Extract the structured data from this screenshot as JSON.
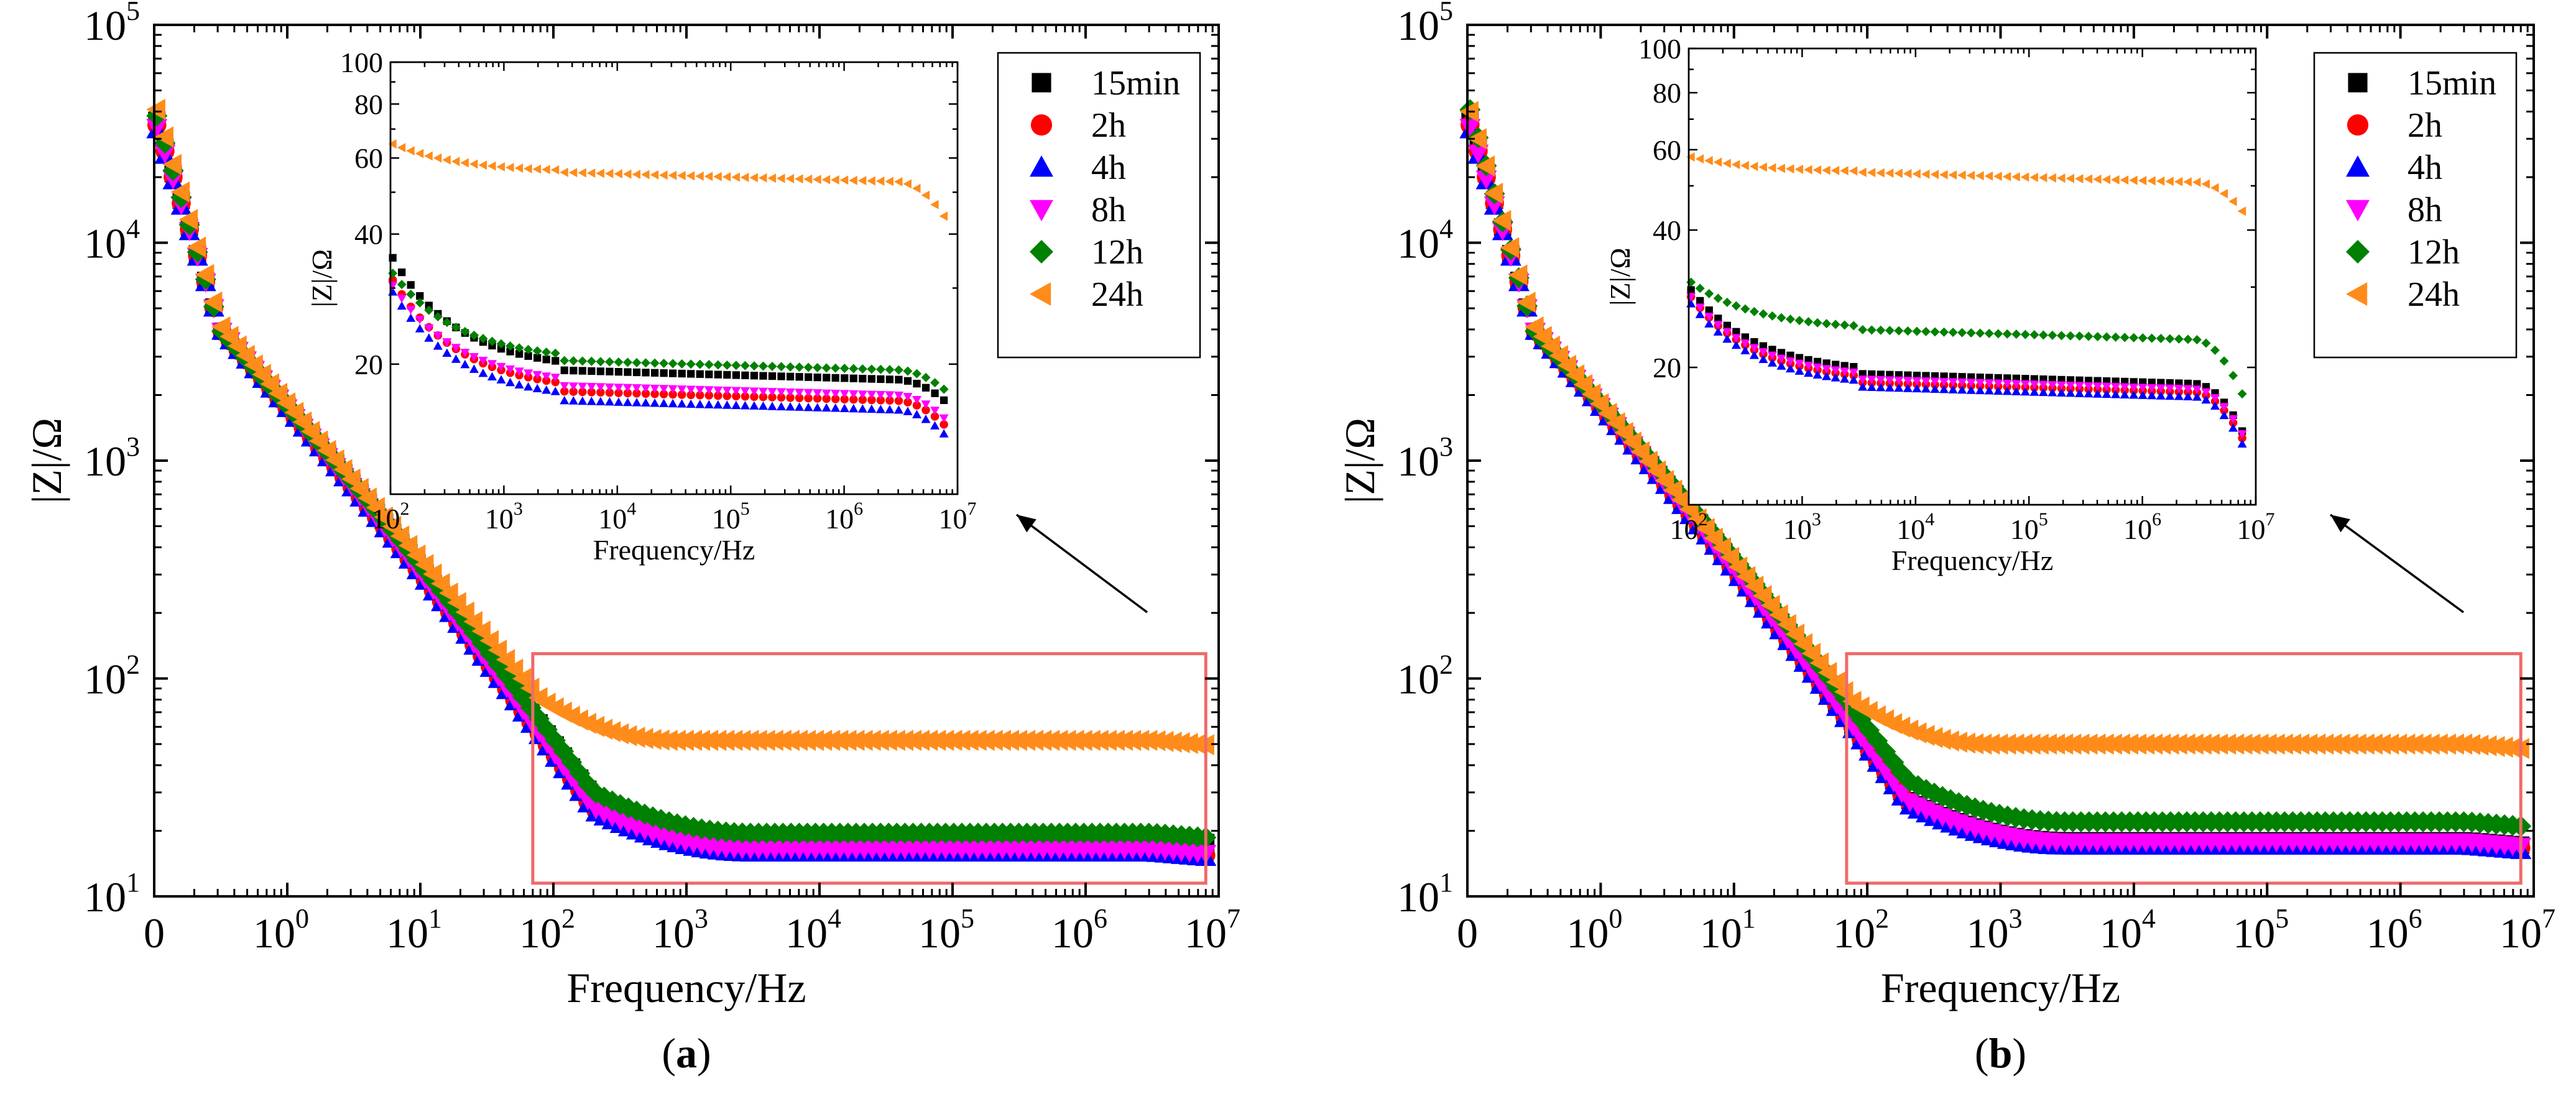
{
  "colors": {
    "15min": "#000000",
    "2h": "#ff0000",
    "4h": "#0000ff",
    "8h": "#ff00ff",
    "12h": "#008000",
    "24h": "#ff8c1a",
    "zoom_box": "#f06a6a"
  },
  "chart_data": [
    {
      "type": "scatter",
      "panel_label": "a",
      "xlabel": "Frequency/Hz",
      "ylabel": "|Z|/Ω",
      "x_scale": "log",
      "y_scale": "log",
      "xlim": [
        0.1,
        10000000
      ],
      "ylim": [
        10,
        100000
      ],
      "x_tick_labels": [
        {
          "base": "0",
          "exp": ""
        },
        {
          "base": "10",
          "exp": "0"
        },
        {
          "base": "10",
          "exp": "1"
        },
        {
          "base": "10",
          "exp": "2"
        },
        {
          "base": "10",
          "exp": "3"
        },
        {
          "base": "10",
          "exp": "4"
        },
        {
          "base": "10",
          "exp": "5"
        },
        {
          "base": "10",
          "exp": "6"
        },
        {
          "base": "10",
          "exp": "7"
        }
      ],
      "y_tick_labels": [
        {
          "base": "10",
          "exp": "1"
        },
        {
          "base": "10",
          "exp": "2"
        },
        {
          "base": "10",
          "exp": "3"
        },
        {
          "base": "10",
          "exp": "4"
        },
        {
          "base": "10",
          "exp": "5"
        }
      ],
      "legend": [
        "15min",
        "2h",
        "4h",
        "8h",
        "12h",
        "24h"
      ],
      "legend_position": "top-right",
      "series": [
        {
          "name": "15min",
          "marker": "square",
          "low": 18.5,
          "knee": 22,
          "high": 40000
        },
        {
          "name": "2h",
          "marker": "circle",
          "low": 16.2,
          "knee": 20,
          "high": 38000
        },
        {
          "name": "4h",
          "marker": "triangle-up",
          "low": 15.8,
          "knee": 20,
          "high": 36000
        },
        {
          "name": "8h",
          "marker": "triangle-down",
          "low": 16.5,
          "knee": 20,
          "high": 37000
        },
        {
          "name": "12h",
          "marker": "diamond",
          "low": 19.5,
          "knee": 20,
          "high": 42000
        },
        {
          "name": "24h",
          "marker": "triangle-left",
          "low": 52,
          "knee": 60,
          "high": 45000
        }
      ],
      "zoom_region": {
        "x": [
          70,
          8000000
        ],
        "y": [
          11.5,
          130
        ]
      },
      "inset": {
        "xlabel": "Frequency/Hz",
        "ylabel": "|Z|/Ω",
        "x_scale": "log",
        "y_scale": "log",
        "xlim": [
          100,
          10000000
        ],
        "ylim": [
          10,
          100
        ],
        "x_tick_labels": [
          {
            "base": "10",
            "exp": "2"
          },
          {
            "base": "10",
            "exp": "3"
          },
          {
            "base": "10",
            "exp": "4"
          },
          {
            "base": "10",
            "exp": "5"
          },
          {
            "base": "10",
            "exp": "6"
          },
          {
            "base": "10",
            "exp": "7"
          }
        ],
        "y_tick_labels": [
          "20",
          "40",
          "60",
          "80",
          "100"
        ],
        "series": [
          {
            "name": "15min",
            "start": 36,
            "flat": 18.8,
            "end": 16.5
          },
          {
            "name": "2h",
            "start": 32,
            "flat": 16.8,
            "end": 14.5
          },
          {
            "name": "4h",
            "start": 30,
            "flat": 16.0,
            "end": 13.8
          },
          {
            "name": "8h",
            "start": 31,
            "flat": 17.3,
            "end": 15.0
          },
          {
            "name": "12h",
            "start": 33,
            "flat": 19.8,
            "end": 17.5
          },
          {
            "name": "24h",
            "start": 65,
            "flat": 54,
            "end": 44
          }
        ]
      }
    },
    {
      "type": "scatter",
      "panel_label": "b",
      "xlabel": "Frequency/Hz",
      "ylabel": "|Z|/Ω",
      "x_scale": "log",
      "y_scale": "log",
      "xlim": [
        0.1,
        10000000
      ],
      "ylim": [
        10,
        100000
      ],
      "x_tick_labels": [
        {
          "base": "0",
          "exp": ""
        },
        {
          "base": "10",
          "exp": "0"
        },
        {
          "base": "10",
          "exp": "1"
        },
        {
          "base": "10",
          "exp": "2"
        },
        {
          "base": "10",
          "exp": "3"
        },
        {
          "base": "10",
          "exp": "4"
        },
        {
          "base": "10",
          "exp": "5"
        },
        {
          "base": "10",
          "exp": "6"
        },
        {
          "base": "10",
          "exp": "7"
        }
      ],
      "y_tick_labels": [
        {
          "base": "10",
          "exp": "1"
        },
        {
          "base": "10",
          "exp": "2"
        },
        {
          "base": "10",
          "exp": "3"
        },
        {
          "base": "10",
          "exp": "4"
        },
        {
          "base": "10",
          "exp": "5"
        }
      ],
      "legend": [
        "15min",
        "2h",
        "4h",
        "8h",
        "12h",
        "24h"
      ],
      "legend_position": "top-right",
      "series": [
        {
          "name": "15min",
          "marker": "square",
          "low": 18.0,
          "knee": 20,
          "high": 40000
        },
        {
          "name": "2h",
          "marker": "circle",
          "low": 17.5,
          "knee": 20,
          "high": 38000
        },
        {
          "name": "4h",
          "marker": "triangle-up",
          "low": 17.0,
          "knee": 20,
          "high": 36000
        },
        {
          "name": "8h",
          "marker": "triangle-down",
          "low": 17.8,
          "knee": 20,
          "high": 37000
        },
        {
          "name": "12h",
          "marker": "diamond",
          "low": 22,
          "knee": 22,
          "high": 45000
        },
        {
          "name": "24h",
          "marker": "triangle-left",
          "low": 50,
          "knee": 55,
          "high": 44000
        }
      ],
      "zoom_region": {
        "x": [
          70,
          8000000
        ],
        "y": [
          11.5,
          130
        ]
      },
      "inset": {
        "xlabel": "Frequency/Hz",
        "ylabel": "|Z|/Ω",
        "x_scale": "log",
        "y_scale": "log",
        "xlim": [
          100,
          10000000
        ],
        "ylim": [
          10,
          100
        ],
        "x_tick_labels": [
          {
            "base": "10",
            "exp": "2"
          },
          {
            "base": "10",
            "exp": "3"
          },
          {
            "base": "10",
            "exp": "4"
          },
          {
            "base": "10",
            "exp": "5"
          },
          {
            "base": "10",
            "exp": "6"
          },
          {
            "base": "10",
            "exp": "7"
          }
        ],
        "y_tick_labels": [
          "20",
          "40",
          "60",
          "80",
          "100"
        ],
        "series": [
          {
            "name": "15min",
            "start": 30,
            "flat": 18.8,
            "end": 14.5
          },
          {
            "name": "2h",
            "start": 29,
            "flat": 18.0,
            "end": 14.0
          },
          {
            "name": "4h",
            "start": 28,
            "flat": 17.6,
            "end": 13.6
          },
          {
            "name": "8h",
            "start": 29,
            "flat": 18.3,
            "end": 14.3
          },
          {
            "name": "12h",
            "start": 31,
            "flat": 23.5,
            "end": 17.5
          },
          {
            "name": "24h",
            "start": 58,
            "flat": 52,
            "end": 44
          }
        ]
      }
    }
  ]
}
